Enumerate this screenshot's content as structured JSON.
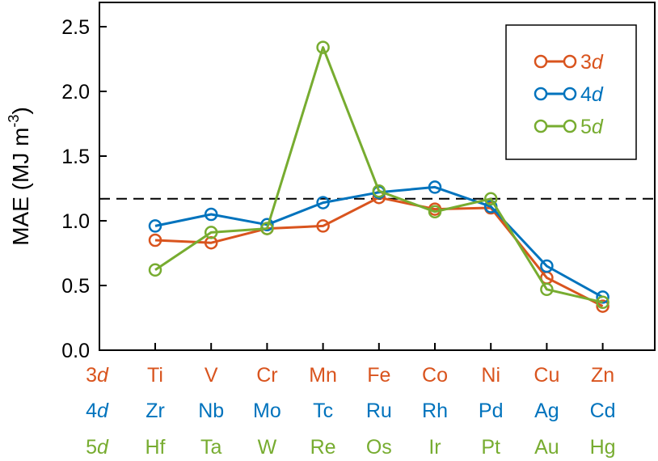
{
  "chart_data": {
    "type": "line",
    "title": "",
    "xlabel": "",
    "ylabel": "MAE (MJ m",
    "ylabel_superscript": "-3",
    "ylabel_close": ")",
    "ylim": [
      0,
      2.5
    ],
    "yticks": [
      0.0,
      0.5,
      1.0,
      1.5,
      2.0,
      2.5
    ],
    "ytick_labels": [
      "0.0",
      "0.5",
      "1.0",
      "1.5",
      "2.0",
      "2.5"
    ],
    "xlim": [
      -0.5,
      9.5
    ],
    "reference_line": 1.17,
    "series": [
      {
        "name": "3d",
        "prefix": "3",
        "suffix": "d",
        "color": "#d9541e",
        "elements": [
          "Ti",
          "V",
          "Cr",
          "Mn",
          "Fe",
          "Co",
          "Ni",
          "Cu",
          "Zn"
        ],
        "values": [
          0.85,
          0.83,
          0.94,
          0.96,
          1.18,
          1.09,
          1.1,
          0.56,
          0.34
        ]
      },
      {
        "name": "4d",
        "prefix": "4",
        "suffix": "d",
        "color": "#0073bd",
        "elements": [
          "Zr",
          "Nb",
          "Mo",
          "Tc",
          "Ru",
          "Rh",
          "Pd",
          "Ag",
          "Cd"
        ],
        "values": [
          0.96,
          1.05,
          0.97,
          1.14,
          1.22,
          1.26,
          1.11,
          0.65,
          0.41
        ]
      },
      {
        "name": "5d",
        "prefix": "5",
        "suffix": "d",
        "color": "#77ac30",
        "elements": [
          "Hf",
          "Ta",
          "W",
          "Re",
          "Os",
          "Ir",
          "Pt",
          "Au",
          "Hg"
        ],
        "values": [
          0.62,
          0.91,
          0.94,
          2.34,
          1.23,
          1.07,
          1.17,
          0.47,
          0.37
        ]
      }
    ],
    "legend": {
      "placement": "top-right"
    }
  }
}
